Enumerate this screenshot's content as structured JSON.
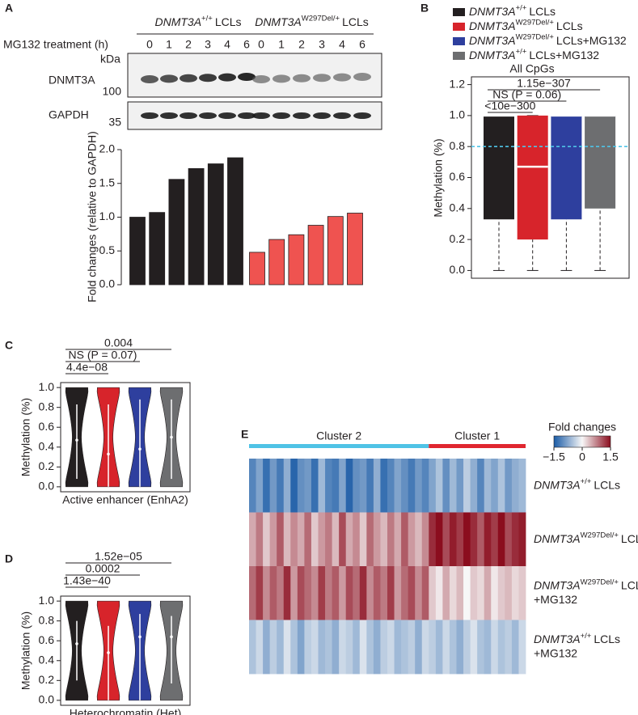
{
  "chart_data": [
    {
      "type": "bar",
      "panel": "A",
      "treatment_label": "MG132 treatment (h)",
      "blot": {
        "unit": "kDa",
        "rows": [
          {
            "name": "DNMT3A",
            "marker": 100
          },
          {
            "name": "GAPDH",
            "marker": 35
          }
        ]
      },
      "ylabel": "Fold changes (relative to GAPDH)",
      "ylim": [
        0,
        2.0
      ],
      "yticks": [
        {
          "value": 0,
          "label": "0.0"
        },
        0.5,
        {
          "value": 1,
          "label": "1.0"
        },
        1.5,
        {
          "value": 2,
          "label": "2.0"
        }
      ],
      "groups": [
        {
          "name": {
            "gene": "DNMT3A",
            "sup": "+/+",
            "rest": "LCLs"
          },
          "color": "#231f20",
          "categories": [
            "0",
            "1",
            "2",
            "3",
            "4",
            "6"
          ],
          "values": [
            1.0,
            1.07,
            1.56,
            1.72,
            1.79,
            1.88
          ]
        },
        {
          "name": {
            "gene": "DNMT3A",
            "sup": "W297Del/+",
            "rest": "LCLs"
          },
          "color": "#ef5350",
          "categories": [
            "0",
            "1",
            "2",
            "3",
            "4",
            "6"
          ],
          "values": [
            0.48,
            0.67,
            0.74,
            0.88,
            1.01,
            1.06
          ]
        }
      ]
    },
    {
      "type": "box",
      "panel": "B",
      "subtitle": "All CpGs",
      "ylabel": "Methylation (%)",
      "ylim": [
        -0.05,
        1.25
      ],
      "yticks": [
        {
          "value": 0,
          "label": "0.0"
        },
        0.2,
        0.4,
        0.6,
        0.8,
        {
          "value": 1,
          "label": "1.0"
        },
        1.2
      ],
      "reference_line": {
        "value": 0.8,
        "color": "#4fc3e6"
      },
      "comparisons": [
        {
          "label": "1.15e−307",
          "groups": [
            0,
            3
          ]
        },
        {
          "label": "NS (P = 0.06)",
          "groups": [
            0,
            2
          ]
        },
        {
          "label": "<10e−300",
          "groups": [
            0,
            1
          ]
        }
      ],
      "series": [
        {
          "name": {
            "gene": "DNMT3A",
            "sup": "+/+",
            "rest": "LCLs"
          },
          "color": "#231f20",
          "stats": {
            "low": 0,
            "q1": 0.33,
            "median": 1.0,
            "q3": 1.0,
            "high": 1.0
          }
        },
        {
          "name": {
            "gene": "DNMT3A",
            "sup": "W297Del/+",
            "rest": "LCLs"
          },
          "color": "#d7242b",
          "stats": {
            "low": 0,
            "q1": 0.2,
            "median": 0.67,
            "q3": 1.0,
            "high": 1.0
          }
        },
        {
          "name": {
            "gene": "DNMT3A",
            "sup": "W297Del/+",
            "rest": "LCLs+MG132"
          },
          "color": "#2e3f9e",
          "stats": {
            "low": 0,
            "q1": 0.33,
            "median": 1.0,
            "q3": 1.0,
            "high": 1.0
          }
        },
        {
          "name": {
            "gene": "DNMT3A",
            "sup": "+/+",
            "rest": "LCLs+MG132"
          },
          "color": "#6d6e70",
          "stats": {
            "low": 0,
            "q1": 0.4,
            "median": 1.0,
            "q3": 1.0,
            "high": 1.0
          }
        }
      ]
    },
    {
      "type": "violin",
      "panel": "C",
      "ylabel": "Methylation (%)",
      "xlabel": "Active enhancer (EnhA2)",
      "ylim": [
        -0.05,
        1.05
      ],
      "yticks": [
        {
          "value": 0,
          "label": "0.0"
        },
        0.2,
        0.4,
        0.6,
        0.8,
        {
          "value": 1,
          "label": "1.0"
        }
      ],
      "comparisons": [
        {
          "label": "0.004",
          "groups": [
            0,
            3
          ]
        },
        {
          "label": "NS (P = 0.07)",
          "groups": [
            0,
            2
          ]
        },
        {
          "label": "4.4e−08",
          "groups": [
            0,
            1
          ]
        }
      ],
      "series": [
        {
          "color": "#231f20",
          "stats": {
            "min": 0,
            "low": 0.08,
            "median": 0.47,
            "high": 0.83,
            "max": 1
          }
        },
        {
          "color": "#d7242b",
          "stats": {
            "min": 0,
            "low": 0,
            "median": 0.33,
            "high": 0.83,
            "max": 1
          }
        },
        {
          "color": "#2e3f9e",
          "stats": {
            "min": 0,
            "low": 0,
            "median": 0.38,
            "high": 0.88,
            "max": 1
          }
        },
        {
          "color": "#6d6e70",
          "stats": {
            "min": 0,
            "low": 0.08,
            "median": 0.5,
            "high": 0.88,
            "max": 1
          }
        }
      ]
    },
    {
      "type": "violin",
      "panel": "D",
      "ylabel": "Methylation (%)",
      "xlabel": "Heterochromatin (Het)",
      "ylim": [
        -0.05,
        1.05
      ],
      "yticks": [
        {
          "value": 0,
          "label": "0.0"
        },
        0.2,
        0.4,
        0.6,
        0.8,
        {
          "value": 1,
          "label": "1.0"
        }
      ],
      "comparisons": [
        {
          "label": "1.52e−05",
          "groups": [
            0,
            3
          ]
        },
        {
          "label": "0.0002",
          "groups": [
            0,
            2
          ]
        },
        {
          "label": "1.43e−40",
          "groups": [
            0,
            1
          ]
        }
      ],
      "series": [
        {
          "color": "#231f20",
          "stats": {
            "min": 0,
            "low": 0.2,
            "median": 0.57,
            "high": 0.8,
            "max": 1
          }
        },
        {
          "color": "#d7242b",
          "stats": {
            "min": 0,
            "low": 0,
            "median": 0.48,
            "high": 0.75,
            "max": 1
          }
        },
        {
          "color": "#2e3f9e",
          "stats": {
            "min": 0,
            "low": 0,
            "median": 0.64,
            "high": 0.87,
            "max": 1
          }
        },
        {
          "color": "#6d6e70",
          "stats": {
            "min": 0,
            "low": 0.17,
            "median": 0.64,
            "high": 0.85,
            "max": 1
          }
        }
      ]
    },
    {
      "type": "heatmap",
      "panel": "E",
      "colorbar_title": "Fold changes",
      "zlim": [
        -1.5,
        1.5
      ],
      "zticks": [
        {
          "value": -1.5,
          "label": "−1.5"
        },
        0,
        1.5
      ],
      "colorscale": [
        "#1a5ba6",
        "#f7f7f7",
        "#8b0d1e"
      ],
      "rows": [
        {
          "gene": "DNMT3A",
          "sup": "+/+",
          "rest": "LCLs"
        },
        {
          "gene": "DNMT3A",
          "sup": "W297Del/+",
          "rest": "LCLs"
        },
        {
          "gene": "DNMT3A",
          "sup": "W297Del/+",
          "rest": "LCLs",
          "line2": "+MG132"
        },
        {
          "gene": "DNMT3A",
          "sup": "+/+",
          "rest": "LCLs",
          "line2": "+MG132"
        }
      ],
      "clusters": [
        {
          "name": "Cluster 2",
          "color": "#4fc3e6",
          "values": [
            [
              -1.1,
              -0.8,
              -1.3,
              -0.9,
              -1.2,
              -0.7,
              -1.4,
              -1.0,
              -0.9,
              -1.3,
              -0.6,
              -1.1,
              -1.2,
              -0.8,
              -1.4,
              -1.0,
              -0.9,
              -1.2,
              -0.7,
              -1.3,
              -1.1,
              -0.8,
              -1.0,
              -1.2,
              -0.9,
              -1.1
            ],
            [
              0.5,
              0.8,
              0.3,
              0.6,
              1.0,
              0.4,
              0.7,
              0.5,
              0.9,
              0.3,
              0.6,
              0.8,
              0.4,
              1.1,
              0.5,
              0.7,
              0.3,
              0.9,
              0.6,
              0.4,
              0.8,
              0.5,
              1.0,
              0.6,
              0.4,
              0.7
            ],
            [
              0.9,
              1.2,
              0.7,
              1.0,
              0.8,
              1.3,
              0.6,
              1.1,
              0.9,
              0.7,
              1.2,
              0.8,
              1.0,
              0.6,
              1.1,
              0.9,
              1.3,
              0.7,
              1.0,
              0.8,
              1.2,
              0.6,
              0.9,
              1.1,
              0.7,
              1.0
            ],
            [
              -0.5,
              -0.3,
              -0.7,
              -0.4,
              -0.6,
              -0.2,
              -0.5,
              -0.8,
              -0.4,
              -0.3,
              -0.6,
              -0.5,
              -0.7,
              -0.3,
              -0.4,
              -0.6,
              -0.2,
              -0.5,
              -0.7,
              -0.4,
              -0.3,
              -0.6,
              -0.5,
              -0.4,
              -0.7,
              -0.3
            ]
          ]
        },
        {
          "name": "Cluster 1",
          "color": "#e0262f",
          "values": [
            [
              -0.8,
              -0.5,
              -1.0,
              -0.6,
              -0.9,
              -0.4,
              -0.7,
              -1.1,
              -0.6,
              -0.8,
              -0.5,
              -0.9,
              -0.7,
              -0.6
            ],
            [
              1.3,
              1.5,
              1.1,
              1.4,
              1.2,
              1.5,
              1.3,
              1.0,
              1.4,
              1.2,
              1.5,
              1.1,
              1.3,
              1.4
            ],
            [
              0.3,
              0.1,
              0.5,
              0.2,
              0.4,
              0.0,
              0.3,
              0.2,
              0.5,
              0.1,
              0.3,
              0.4,
              0.2,
              0.3
            ],
            [
              -0.4,
              -0.6,
              -0.3,
              -0.5,
              -0.7,
              -0.4,
              -0.2,
              -0.5,
              -0.6,
              -0.3,
              -0.5,
              -0.4,
              -0.6,
              -0.3
            ]
          ]
        }
      ]
    }
  ]
}
